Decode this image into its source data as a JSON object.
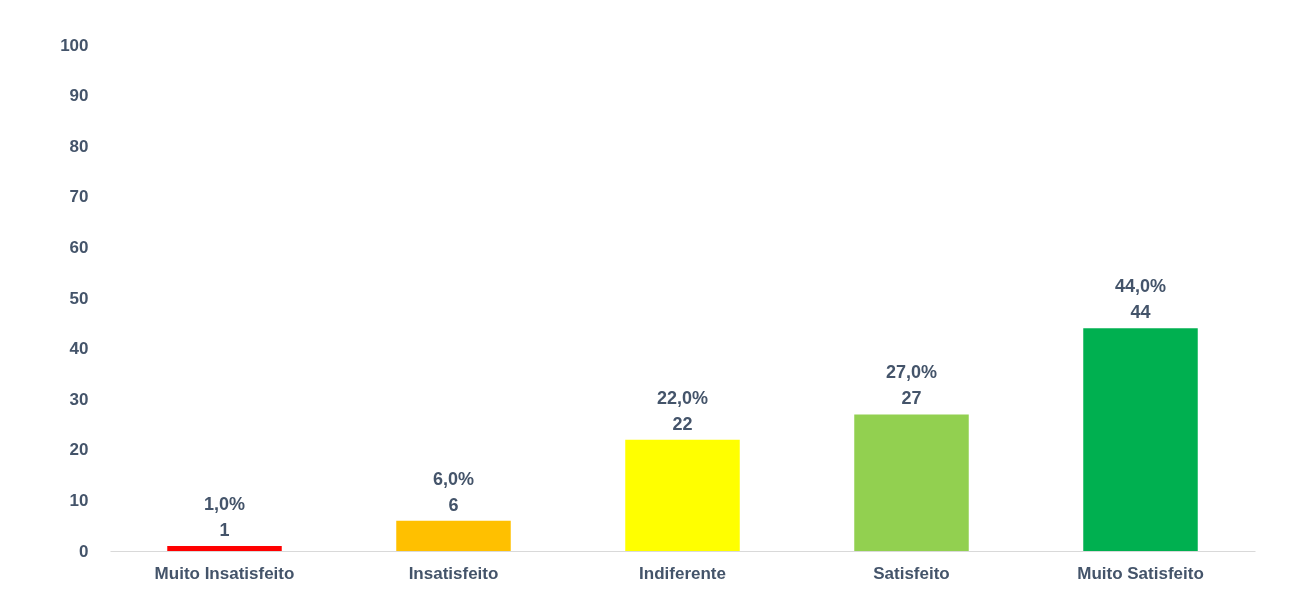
{
  "chart_data": {
    "type": "bar",
    "categories": [
      "Muito Insatisfeito",
      "Insatisfeito",
      "Indiferente",
      "Satisfeito",
      "Muito Satisfeito"
    ],
    "values": [
      1,
      6,
      22,
      27,
      44
    ],
    "colors": [
      "#ff0000",
      "#ffc000",
      "#ffff00",
      "#92d050",
      "#00b050"
    ],
    "value_labels": [
      "1,0%\n1",
      "6,0%\n6",
      "22,0%\n22",
      "27,0%\n27",
      "44,0%\n44"
    ],
    "ylim": [
      0,
      100
    ],
    "yticks": [
      0,
      10,
      20,
      30,
      40,
      50,
      60,
      70,
      80,
      90,
      100
    ],
    "grid": false,
    "legend": false
  }
}
